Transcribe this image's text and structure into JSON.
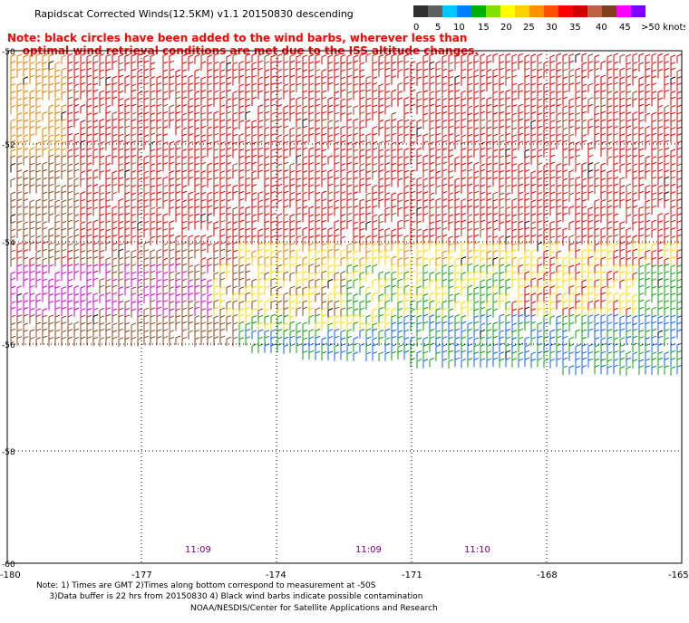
{
  "title": "Rapidscat Corrected Winds(12.5KM) v1.1 20150830 descending",
  "note": {
    "line1": "Note: black circles have been added to the wind barbs, wherever less than",
    "line2": "optimal wind retrieval conditions are met due to the ISS altitude changes."
  },
  "legend": {
    "labels": [
      "0",
      "5",
      "10",
      "15",
      "20",
      "25",
      "30",
      "35",
      "40",
      "45",
      ">50 knots"
    ],
    "colors": [
      "#303030",
      "#606060",
      "#00c8ff",
      "#0080ff",
      "#00b000",
      "#80e000",
      "#ffff00",
      "#ffd000",
      "#ff9000",
      "#ff5000",
      "#ff0000",
      "#d00000",
      "#c06040",
      "#804020",
      "#ff00ff",
      "#8000ff"
    ]
  },
  "map": {
    "lat_labels": [
      "-50",
      "-52",
      "-54",
      "-56",
      "-58",
      "-60"
    ],
    "lon_labels": [
      "-180",
      "-177",
      "-174",
      "-171",
      "-168",
      "-165"
    ],
    "time_labels": [
      "11:09",
      "11:09",
      "11:10"
    ]
  },
  "footer": {
    "line1": "Note: 1) Times are GMT 2)Times along bottom correspond to measurement at -50S",
    "line2": "3)Data buffer is 22 hrs from 20150830 4) Black wind barbs indicate possible contamination",
    "credit": "NOAA/NESDIS/Center for Satellite Applications and Research"
  },
  "colors": {
    "red": "#e00000",
    "brown": "#8a4a20",
    "orange": "#e08000",
    "yellow": "#ffd800",
    "green": "#10a010",
    "blue": "#1060ff",
    "magenta": "#d000d0",
    "black": "#000000"
  }
}
